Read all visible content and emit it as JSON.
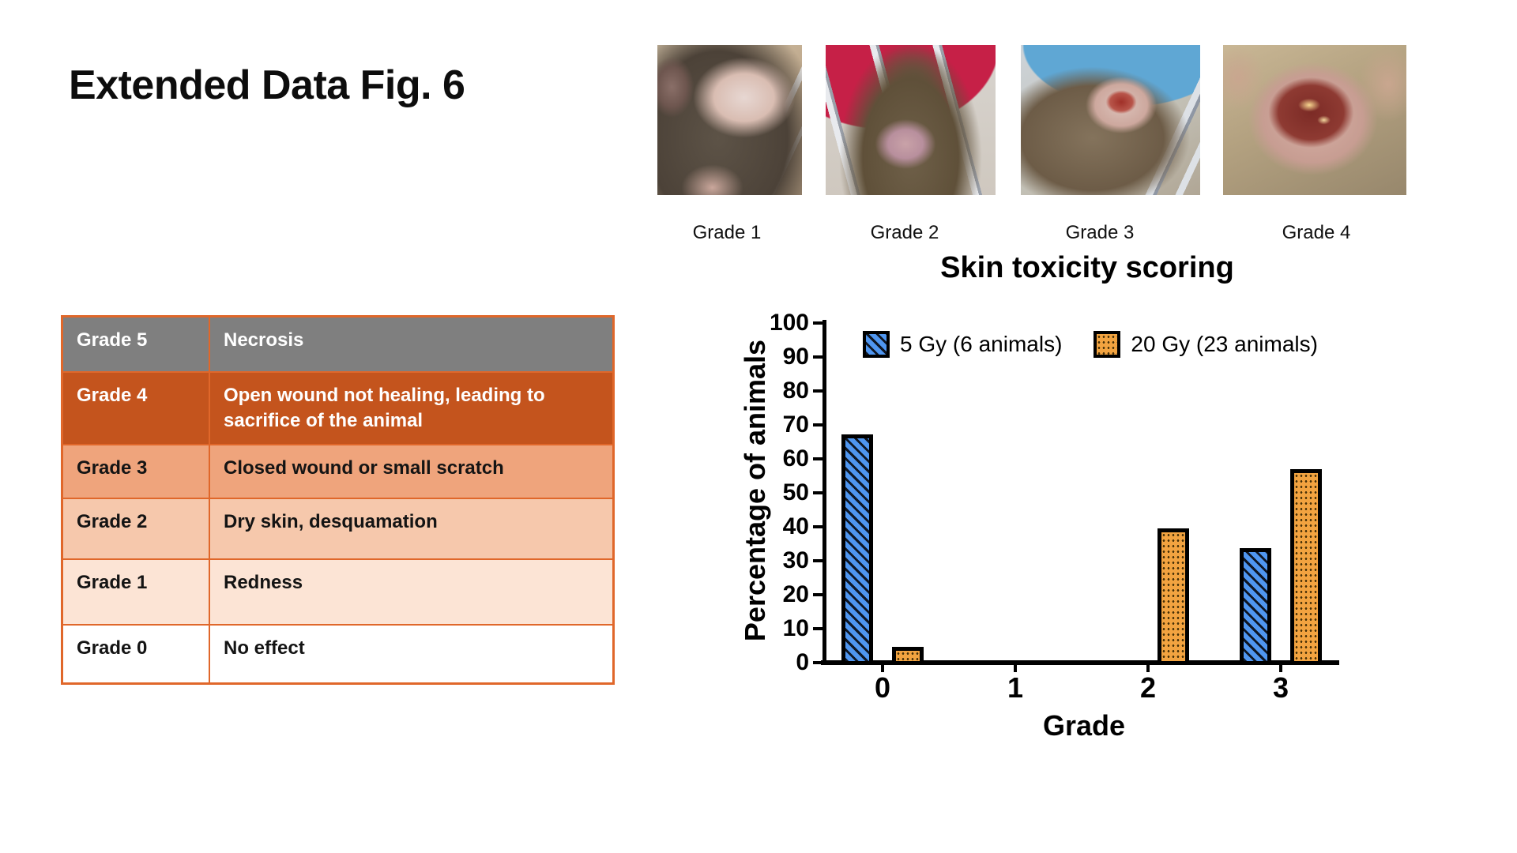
{
  "page": {
    "title": "Extended Data Fig. 6",
    "background": "#FFFFFF"
  },
  "photos": {
    "items": [
      {
        "label": "Grade 1"
      },
      {
        "label": "Grade 2"
      },
      {
        "label": "Grade 3"
      },
      {
        "label": "Grade 4"
      }
    ]
  },
  "table": {
    "border_color": "#E0672A",
    "rows": [
      {
        "grade": "Grade 5",
        "description": "Necrosis",
        "bg": "#7F7F7F",
        "fg": "#FFFFFF"
      },
      {
        "grade": "Grade 4",
        "description": "Open wound not healing, leading to sacrifice of the animal",
        "bg": "#C4541D",
        "fg": "#FFFFFF"
      },
      {
        "grade": "Grade 3",
        "description": "Closed wound or small scratch",
        "bg": "#EFA47C",
        "fg": "#141414"
      },
      {
        "grade": "Grade 2",
        "description": "Dry skin, desquamation",
        "bg": "#F6C8AC",
        "fg": "#141414"
      },
      {
        "grade": "Grade 1",
        "description": "Redness",
        "bg": "#FCE4D5",
        "fg": "#141414"
      },
      {
        "grade": "Grade 0",
        "description": "No effect",
        "bg": "#FFFFFF",
        "fg": "#141414"
      }
    ]
  },
  "chart_data": {
    "type": "bar",
    "title": "Skin toxicity scoring",
    "xlabel": "Grade",
    "ylabel": "Percentage of animals",
    "categories": [
      "0",
      "1",
      "2",
      "3"
    ],
    "series": [
      {
        "name": "5 Gy (6 animals)",
        "color": "#4F96F0",
        "pattern": "diagonal-hatch",
        "values": [
          66.7,
          0,
          0,
          33.3
        ]
      },
      {
        "name": "20 Gy (23 animals)",
        "color": "#F2A340",
        "pattern": "dots",
        "values": [
          4.3,
          0,
          39.1,
          56.5
        ]
      }
    ],
    "ylim": [
      0,
      100
    ],
    "ytick_step": 10,
    "yticks": [
      0,
      10,
      20,
      30,
      40,
      50,
      60,
      70,
      80,
      90,
      100
    ],
    "grid": false,
    "legend_position": "top",
    "axis_color": "#000000"
  }
}
